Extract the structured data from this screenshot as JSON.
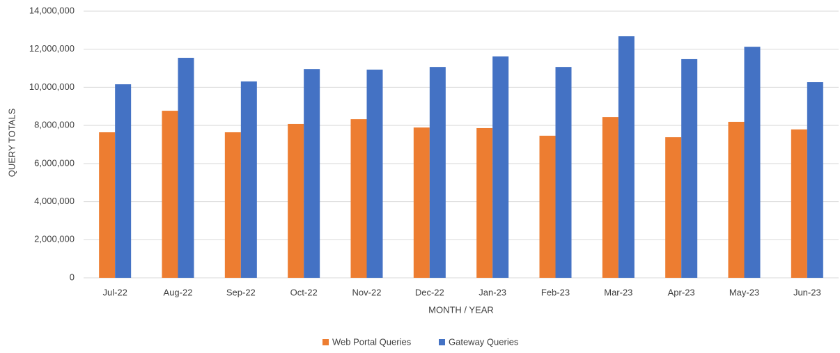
{
  "chart_data": {
    "type": "bar",
    "y_label": "QUERY TOTALS",
    "x_label": "MONTH / YEAR",
    "categories": [
      "Jul-22",
      "Aug-22",
      "Sep-22",
      "Oct-22",
      "Nov-22",
      "Dec-22",
      "Jan-23",
      "Feb-23",
      "Mar-23",
      "Apr-23",
      "May-23",
      "Jun-23"
    ],
    "series": [
      {
        "name": "Web Portal Queries",
        "color": "#ed7d31",
        "values": [
          7640000,
          8770000,
          7640000,
          8080000,
          8330000,
          7890000,
          7860000,
          7460000,
          8440000,
          7380000,
          8190000,
          7790000
        ]
      },
      {
        "name": "Gateway Queries",
        "color": "#4472c4",
        "values": [
          10160000,
          11550000,
          10310000,
          10960000,
          10930000,
          11070000,
          11620000,
          11070000,
          12680000,
          11480000,
          12130000,
          10270000
        ]
      }
    ],
    "ylim": [
      0,
      14000000
    ],
    "yticks": [
      0,
      {
        "value": 2000000,
        "label": "2,000,000"
      },
      {
        "value": 4000000,
        "label": "4,000,000"
      },
      {
        "value": 6000000,
        "label": "6,000,000"
      },
      {
        "value": 8000000,
        "label": "8,000,000"
      },
      {
        "value": 10000000,
        "label": "10,000,000"
      },
      {
        "value": 12000000,
        "label": "12,000,000"
      },
      {
        "value": 14000000,
        "label": "14,000,000"
      }
    ],
    "grid": true,
    "legend": "bottom"
  }
}
